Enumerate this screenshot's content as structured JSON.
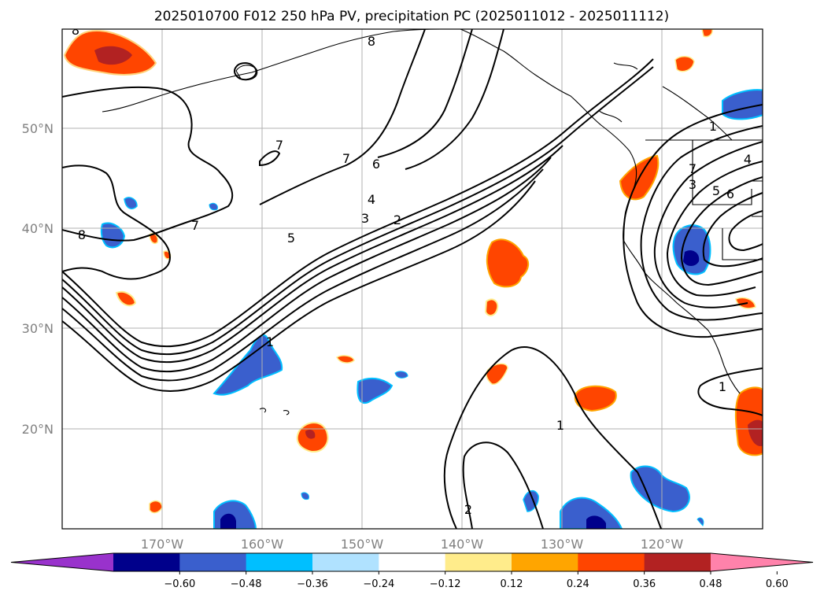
{
  "title": "2025010700 F012 250 hPa PV, precipitation PC (2025011012 - 2025011112)",
  "chart_data": {
    "type": "contour-map",
    "title": "2025010700 F012 250 hPa PV, precipitation PC (2025011012 - 2025011112)",
    "lon_range": [
      -180,
      -110
    ],
    "lat_range": [
      10,
      60
    ],
    "lat_ticks": [
      "50°N",
      "40°N",
      "30°N",
      "20°N"
    ],
    "lon_ticks": [
      "170°W",
      "160°W",
      "150°W",
      "140°W",
      "130°W",
      "120°W"
    ],
    "grid": true,
    "pv_contour_labels": [
      "8",
      "8",
      "7",
      "7",
      "7",
      "6",
      "5",
      "4",
      "3",
      "2",
      "8",
      "1",
      "1",
      "1",
      "2",
      "3",
      "4",
      "5",
      "6",
      "7",
      "1"
    ],
    "colorbar": {
      "ticks": [
        "−0.60",
        "−0.48",
        "−0.36",
        "−0.24",
        "−0.12",
        "0.12",
        "0.24",
        "0.36",
        "0.48",
        "0.60"
      ],
      "colors": [
        "#9932cc",
        "#00008b",
        "#3a5fcd",
        "#00bfff",
        "#b0e2ff",
        "#ffffff",
        "#ffec8b",
        "#ffa500",
        "#ff4500",
        "#b22222",
        "#ff82ab"
      ],
      "extend": "both"
    }
  }
}
